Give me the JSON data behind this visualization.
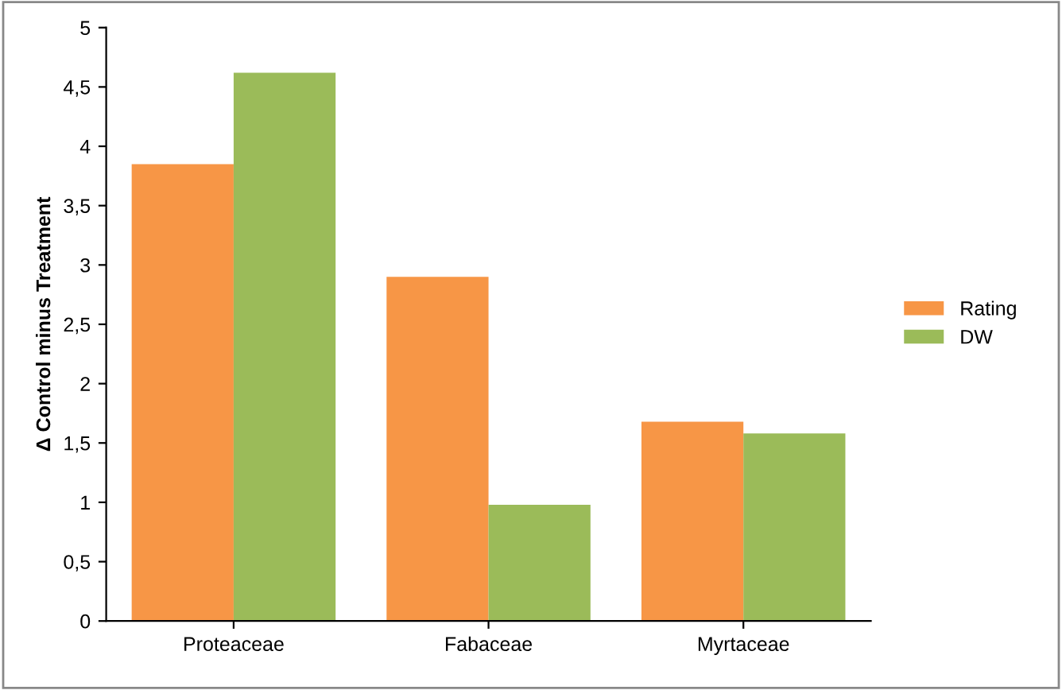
{
  "chart_data": {
    "type": "bar",
    "ylabel": "Δ Control minus Treatment",
    "categories": [
      "Proteaceae",
      "Fabaceae",
      "Myrtaceae"
    ],
    "series": [
      {
        "name": "Rating",
        "color": "#f79646",
        "values": [
          3.85,
          2.9,
          1.68
        ]
      },
      {
        "name": "DW",
        "color": "#9bbb59",
        "values": [
          4.62,
          0.98,
          1.58
        ]
      }
    ],
    "ylim": [
      0,
      5
    ],
    "yticks": [
      0,
      {
        "value": 0.5,
        "label": "0,5"
      },
      1,
      {
        "value": 1.5,
        "label": "1,5"
      },
      2,
      {
        "value": 2.5,
        "label": "2,5"
      },
      3,
      {
        "value": 3.5,
        "label": "3,5"
      },
      4,
      {
        "value": 4.5,
        "label": "4,5"
      },
      5
    ],
    "grid": false,
    "legend": "right"
  }
}
